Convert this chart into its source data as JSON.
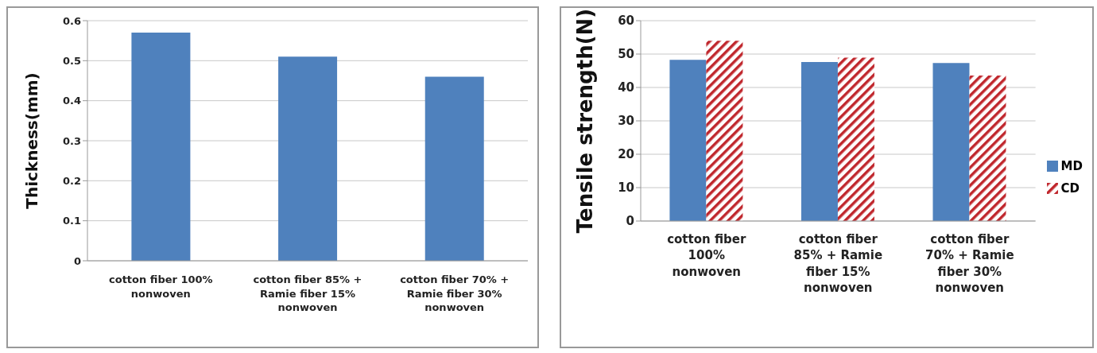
{
  "chart_data": [
    {
      "type": "bar",
      "ylabel": "Thickness(mm)",
      "categories": [
        "cotton fiber 100% nonwoven",
        "cotton fiber 85% + Ramie fiber 15% nonwoven",
        "cotton fiber 70% + Ramie fiber 30% nonwoven"
      ],
      "values": [
        0.57,
        0.51,
        0.46
      ],
      "color": "#4f81bd",
      "ylim": [
        0,
        0.6
      ],
      "yticks": [
        0,
        0.1,
        0.2,
        0.3,
        0.4,
        0.5,
        0.6
      ],
      "grid": "y"
    },
    {
      "type": "bar",
      "ylabel": "Tensile strength(N)",
      "categories": [
        "cotton fiber 100% nonwoven",
        "cotton fiber 85% + Ramie fiber 15% nonwoven",
        "cotton fiber 70% + Ramie fiber 30% nonwoven"
      ],
      "series": [
        {
          "name": "MD",
          "color": "#4f81bd",
          "values": [
            48.3,
            47.6,
            47.3
          ]
        },
        {
          "name": "CD",
          "color": "#c0272d",
          "values": [
            54.0,
            48.9,
            43.6
          ]
        }
      ],
      "ylim": [
        0,
        60
      ],
      "yticks": [
        0,
        10,
        20,
        30,
        40,
        50,
        60
      ],
      "grid": "y",
      "legend": "right"
    }
  ]
}
